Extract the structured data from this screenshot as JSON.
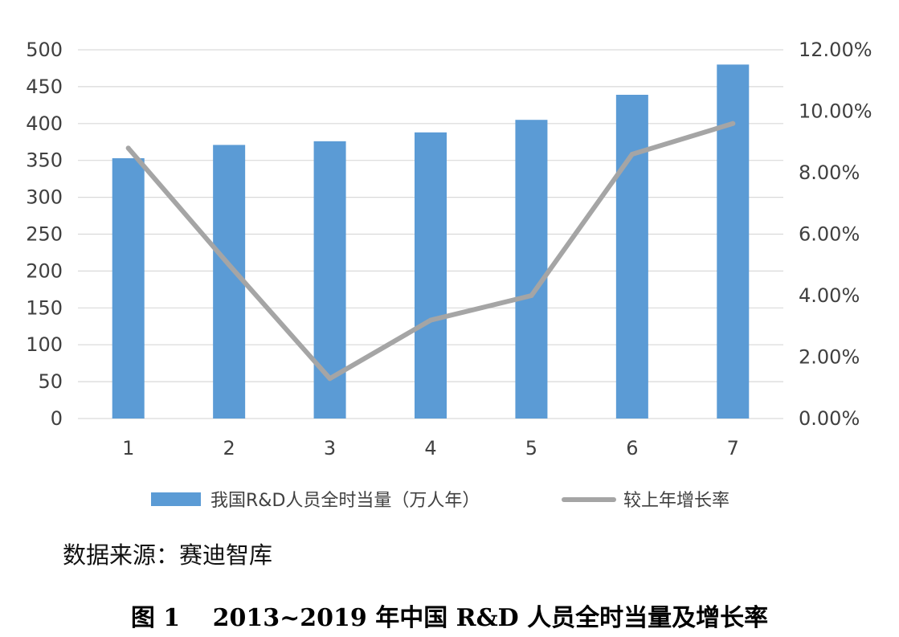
{
  "chart_data": {
    "type": "bar",
    "categories": [
      "1",
      "2",
      "3",
      "4",
      "5",
      "6",
      "7"
    ],
    "series": [
      {
        "name": "我国R&D人员全时当量（万人年）",
        "type": "bar",
        "axis": "left",
        "color": "#5b9bd5",
        "values": [
          353,
          371,
          376,
          388,
          405,
          439,
          480
        ]
      },
      {
        "name": "较上年增长率",
        "type": "line",
        "axis": "right",
        "color": "#a5a5a5",
        "values": [
          0.088,
          0.05,
          0.013,
          0.032,
          0.04,
          0.086,
          0.096
        ]
      }
    ],
    "y_left": {
      "min": 0,
      "max": 500,
      "ticks": [
        0,
        50,
        100,
        150,
        200,
        250,
        300,
        350,
        400,
        450,
        500
      ],
      "tick_labels": [
        "0",
        "50",
        "100",
        "150",
        "200",
        "250",
        "300",
        "350",
        "400",
        "450",
        "500"
      ]
    },
    "y_right": {
      "min": 0,
      "max": 0.12,
      "ticks": [
        0,
        0.02,
        0.04,
        0.06,
        0.08,
        0.1,
        0.12
      ],
      "tick_labels": [
        "0.00%",
        "2.00%",
        "4.00%",
        "6.00%",
        "8.00%",
        "10.00%",
        "12.00%"
      ]
    },
    "grid": true,
    "legend_position": "bottom"
  },
  "source_text": "数据来源：赛迪智库",
  "caption": "图 1　 2013~2019 年中国 R&D 人员全时当量及增长率",
  "colors": {
    "bar": "#5b9bd5",
    "line": "#a5a5a5",
    "grid": "#d9d9d9"
  }
}
